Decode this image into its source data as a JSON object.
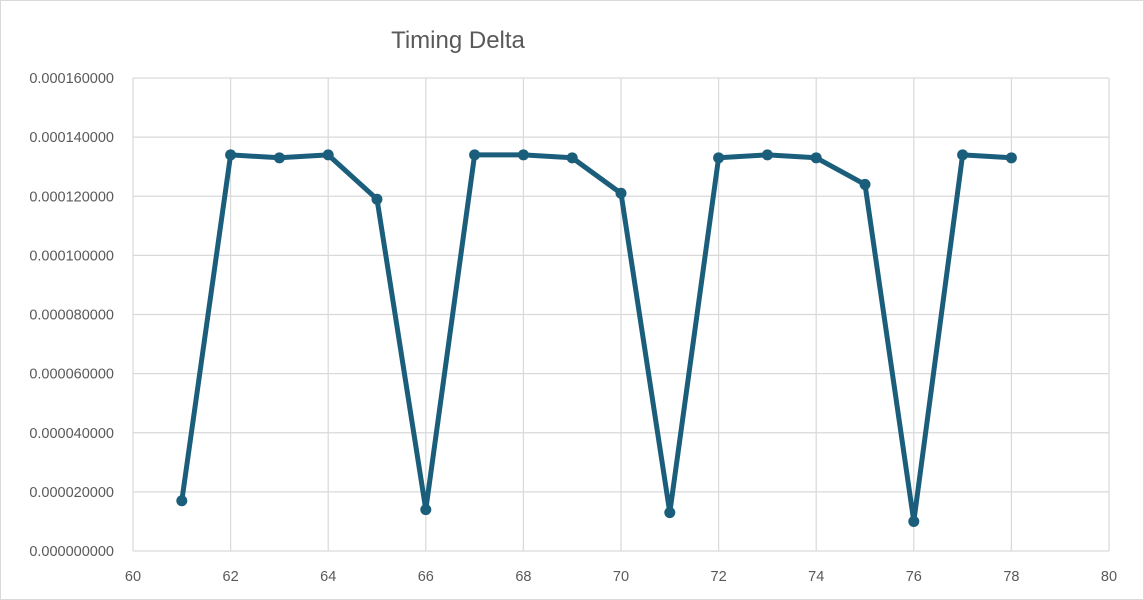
{
  "chart_data": {
    "type": "line",
    "title": "Timing Delta",
    "xlabel": "",
    "ylabel": "",
    "xlim": [
      60,
      80
    ],
    "ylim": [
      0,
      0.00016
    ],
    "x_ticks": [
      "60",
      "62",
      "64",
      "66",
      "68",
      "70",
      "72",
      "74",
      "76",
      "78",
      "80"
    ],
    "y_ticks": [
      "0.000000000",
      "0.000020000",
      "0.000040000",
      "0.000060000",
      "0.000080000",
      "0.000100000",
      "0.000120000",
      "0.000140000",
      "0.000160000"
    ],
    "grid": true,
    "legend": "none",
    "series_color": "#1b5e7b",
    "gridline_color": "#d9d9d9",
    "series": [
      {
        "x": [
          61,
          62,
          63,
          64,
          65,
          66,
          67,
          68,
          69,
          70,
          71,
          72,
          73,
          74,
          75,
          76,
          77,
          78
        ],
        "values": [
          1.7e-05,
          0.000134,
          0.000133,
          0.000134,
          0.000119,
          1.4e-05,
          0.000134,
          0.000134,
          0.000133,
          0.000121,
          1.3e-05,
          0.000133,
          0.000134,
          0.000133,
          0.000124,
          1e-05,
          0.000134,
          0.000133
        ]
      }
    ]
  }
}
